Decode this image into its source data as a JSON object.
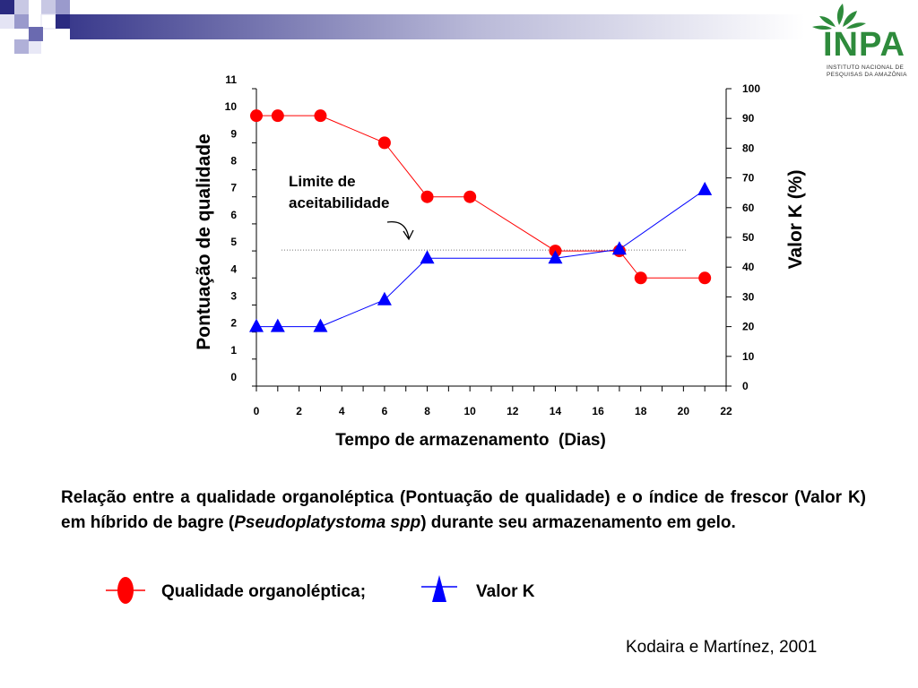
{
  "header": {
    "logo": {
      "brand": "INPA",
      "subtitle_line1": "INSTITUTO NACIONAL DE",
      "subtitle_line2": "PESQUISAS DA AMAZÔNIA"
    }
  },
  "chart_data": {
    "type": "line",
    "xlabel": "Tempo de armazenamento  (Dias)",
    "ylabel_left": "Pontuação de qualidade",
    "ylabel_right": "Valor K (%)",
    "x_ticks": [
      "0",
      "2",
      "4",
      "6",
      "8",
      "10",
      "12",
      "14",
      "16",
      "18",
      "20",
      "22"
    ],
    "y_left_ticks": [
      "0",
      "1",
      "2",
      "3",
      "4",
      "5",
      "6",
      "7",
      "8",
      "9",
      "10",
      "11"
    ],
    "y_right_ticks": [
      "0",
      "10",
      "20",
      "30",
      "40",
      "50",
      "60",
      "70",
      "80",
      "90",
      "100"
    ],
    "xlim": [
      0,
      22
    ],
    "ylim_left": [
      0,
      11
    ],
    "ylim_right": [
      0,
      100
    ],
    "annotation": {
      "line1": "Limite de",
      "line2": "aceitabilidade",
      "value": 5
    },
    "series": [
      {
        "name": "Qualidade organoléptica",
        "axis": "left",
        "color": "#ff0000",
        "marker": "circle",
        "x": [
          0,
          1,
          3,
          6,
          8,
          10,
          14,
          17,
          18,
          21
        ],
        "y": [
          10,
          10,
          10,
          9,
          7,
          7,
          5,
          5,
          4,
          4
        ]
      },
      {
        "name": "Valor K",
        "axis": "right",
        "color": "#0000ff",
        "marker": "triangle",
        "x": [
          0,
          1,
          3,
          6,
          8,
          14,
          17,
          21
        ],
        "y": [
          20,
          20,
          20,
          29,
          43,
          43,
          46,
          66
        ]
      }
    ]
  },
  "caption": {
    "part1": "Relação entre a qualidade organoléptica (Pontuação de qualidade) e o índice de frescor (Valor K) em híbrido de bagre (",
    "species": "Pseudoplatystoma spp",
    "part2": ") durante seu armazenamento em gelo."
  },
  "legend": {
    "quality_label": "Qualidade organoléptica;",
    "k_label": "Valor K",
    "quality_color": "#ff0000",
    "k_color": "#0000ff"
  },
  "citation": "Kodaira e Martínez, 2001"
}
